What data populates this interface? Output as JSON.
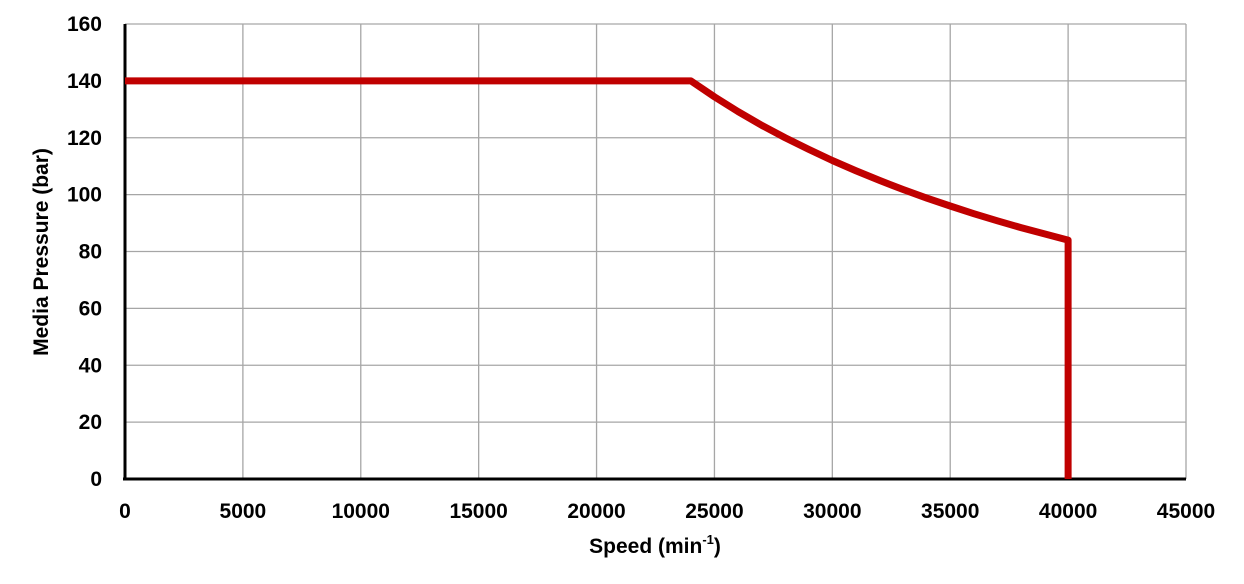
{
  "chart_data": {
    "type": "line",
    "title": "",
    "xlabel": {
      "main": "Speed (min",
      "superscript": "-1",
      "close": ")"
    },
    "ylabel": "Media Pressure (bar)",
    "xlim": [
      0,
      45000
    ],
    "ylim": [
      0,
      160
    ],
    "xticks": [
      "0",
      "5000",
      "10000",
      "15000",
      "20000",
      "25000",
      "30000",
      "35000",
      "40000",
      "45000"
    ],
    "yticks": [
      "0",
      "20",
      "40",
      "60",
      "80",
      "100",
      "120",
      "140",
      "160"
    ],
    "grid": true,
    "legend": "none",
    "series": [
      {
        "color": "#c00000",
        "x": [
          0,
          24000,
          25000,
          26000,
          27000,
          28000,
          29000,
          30000,
          31000,
          32000,
          33000,
          34000,
          35000,
          36000,
          37000,
          38000,
          39000,
          40000,
          40000
        ],
        "y": [
          140,
          140,
          134.4,
          129.2,
          124.4,
          120,
          115.9,
          112,
          108.4,
          105,
          101.8,
          98.8,
          96,
          93.3,
          90.8,
          88.4,
          86.2,
          84,
          0
        ]
      }
    ]
  }
}
